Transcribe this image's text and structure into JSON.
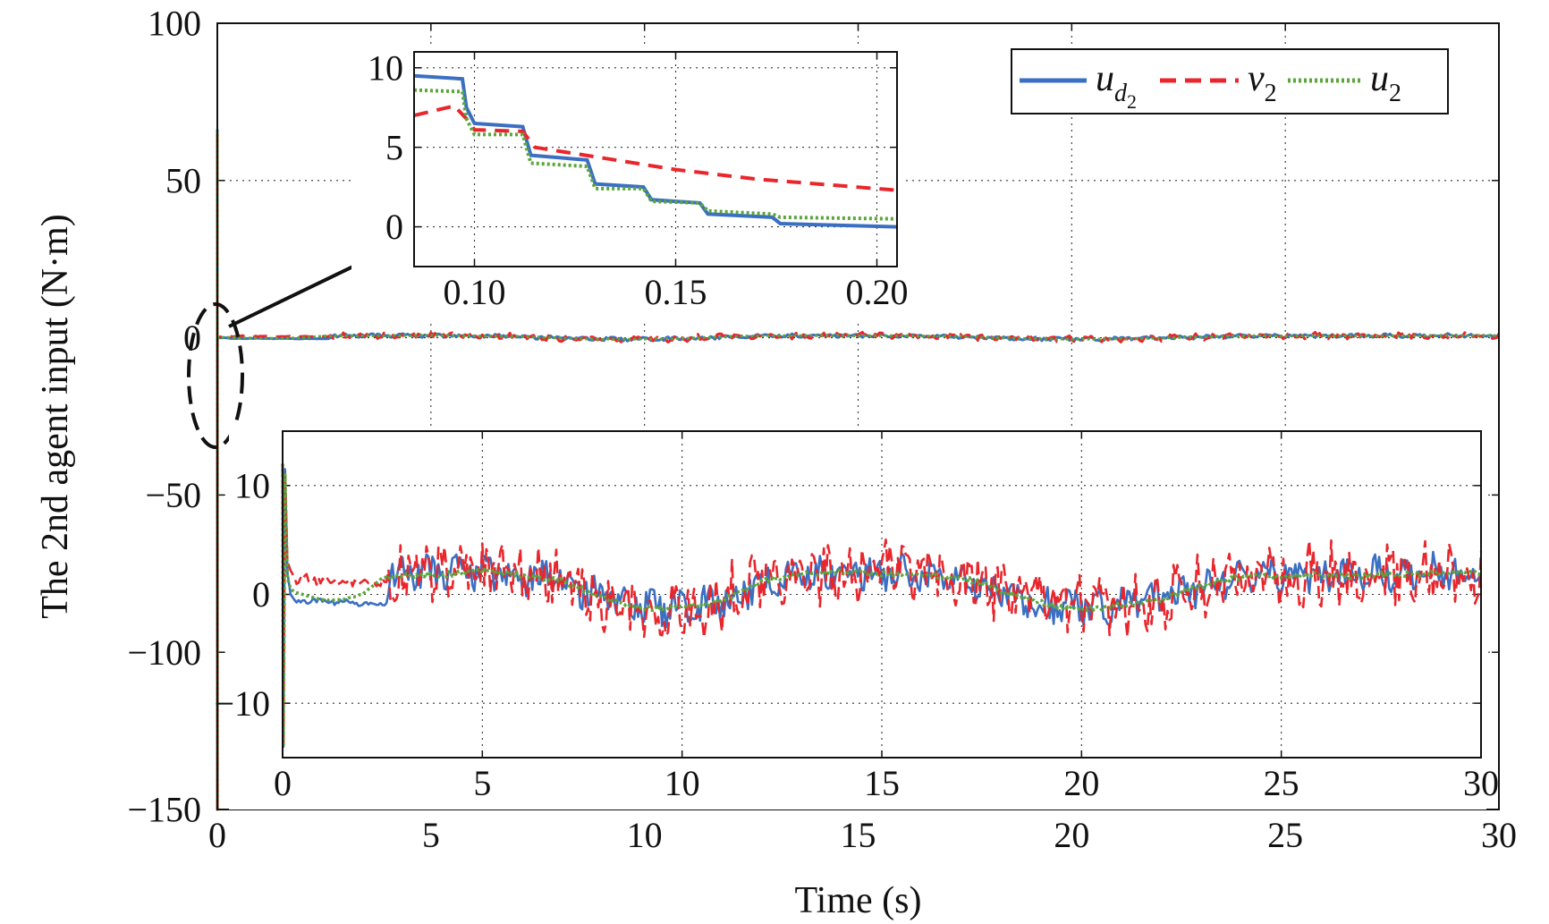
{
  "chart_data": [
    {
      "id": "main",
      "type": "line",
      "title": "",
      "xlabel": "Time (s)",
      "ylabel": "The 2nd agent input (N·m)",
      "xlim": [
        0,
        30
      ],
      "ylim": [
        -150,
        100
      ],
      "xticks": [
        "0",
        "5",
        "10",
        "15",
        "20",
        "25",
        "30"
      ],
      "yticks": [
        "−150",
        "−100",
        "−50",
        "0",
        "50",
        "100"
      ],
      "grid": true,
      "legend_position": "top-right",
      "series": [
        {
          "name": "u_d2",
          "color": "#3a6fc2",
          "style": "solid"
        },
        {
          "name": "v_2",
          "color": "#e8262c",
          "style": "dashed"
        },
        {
          "name": "u_2",
          "color": "#5aa63a",
          "style": "dotted"
        }
      ],
      "initial_transient": {
        "t": 0.0,
        "max": 66,
        "min": -150
      },
      "steady_range": [
        -6,
        5
      ]
    },
    {
      "id": "inset-top",
      "type": "line",
      "title": "",
      "xlim": [
        0.085,
        0.205
      ],
      "ylim": [
        -2.5,
        11
      ],
      "xticks": [
        "0.10",
        "0.15",
        "0.20"
      ],
      "yticks": [
        "0",
        "5",
        "10"
      ],
      "grid": true,
      "series": [
        {
          "name": "u_d2",
          "x": [
            0.085,
            0.097,
            0.098,
            0.1,
            0.112,
            0.114,
            0.128,
            0.13,
            0.142,
            0.144,
            0.156,
            0.158,
            0.174,
            0.176,
            0.205
          ],
          "y": [
            9.5,
            9.3,
            7.5,
            6.5,
            6.3,
            4.5,
            4.2,
            2.7,
            2.5,
            1.7,
            1.5,
            0.8,
            0.6,
            0.2,
            0.0
          ]
        },
        {
          "name": "v_2",
          "x": [
            0.085,
            0.095,
            0.098,
            0.1,
            0.112,
            0.115,
            0.13,
            0.15,
            0.17,
            0.19,
            0.205
          ],
          "y": [
            7.0,
            7.6,
            6.8,
            6.1,
            6.0,
            5.0,
            4.4,
            3.6,
            3.0,
            2.6,
            2.3
          ]
        },
        {
          "name": "u_2",
          "x": [
            0.085,
            0.097,
            0.098,
            0.1,
            0.112,
            0.114,
            0.128,
            0.13,
            0.142,
            0.144,
            0.156,
            0.158,
            0.174,
            0.176,
            0.205
          ],
          "y": [
            8.6,
            8.5,
            6.8,
            5.8,
            5.8,
            4.0,
            3.8,
            2.4,
            2.4,
            1.6,
            1.5,
            1.0,
            0.8,
            0.6,
            0.5
          ]
        }
      ]
    },
    {
      "id": "inset-bottom",
      "type": "line",
      "title": "",
      "xlim": [
        0,
        30
      ],
      "ylim": [
        -15,
        15
      ],
      "xticks": [
        "0",
        "5",
        "10",
        "15",
        "20",
        "25",
        "30"
      ],
      "yticks": [
        "−10",
        "0",
        "10"
      ],
      "grid": true,
      "envelope_t": [
        0,
        0.5,
        1,
        1.5,
        2,
        2.5,
        3,
        3.5,
        4,
        4.5,
        5,
        5.5,
        6,
        6.5,
        7,
        7.5,
        8,
        8.5,
        9,
        9.5,
        10,
        10.5,
        11,
        11.5,
        12,
        12.5,
        13,
        13.5,
        14,
        14.5,
        15,
        15.5,
        16,
        16.5,
        17,
        17.5,
        18,
        18.5,
        19,
        19.5,
        20,
        20.5,
        21,
        21.5,
        22,
        22.5,
        23,
        23.5,
        24,
        24.5,
        25,
        25.5,
        26,
        26.5,
        27,
        27.5,
        28,
        28.5,
        29,
        29.5,
        30
      ],
      "envelope_u2": [
        0.5,
        0,
        -0.5,
        -0.5,
        0,
        1.5,
        1.8,
        1.8,
        1.8,
        2.0,
        2.1,
        2.0,
        1.8,
        1.6,
        1.2,
        0.5,
        -0.3,
        -0.8,
        -1.2,
        -1.3,
        -1.2,
        -1.0,
        -0.5,
        0.3,
        1.2,
        1.6,
        1.8,
        2.0,
        2.1,
        2.0,
        1.9,
        1.8,
        1.7,
        1.6,
        1.5,
        1.0,
        0.3,
        -0.3,
        -0.8,
        -1.2,
        -1.3,
        -1.2,
        -1.0,
        -0.8,
        -0.5,
        0.2,
        0.8,
        1.3,
        1.6,
        1.7,
        1.7,
        1.8,
        1.8,
        1.7,
        1.7,
        1.8,
        1.8,
        1.9,
        1.9,
        2.0,
        2.0
      ]
    }
  ]
}
